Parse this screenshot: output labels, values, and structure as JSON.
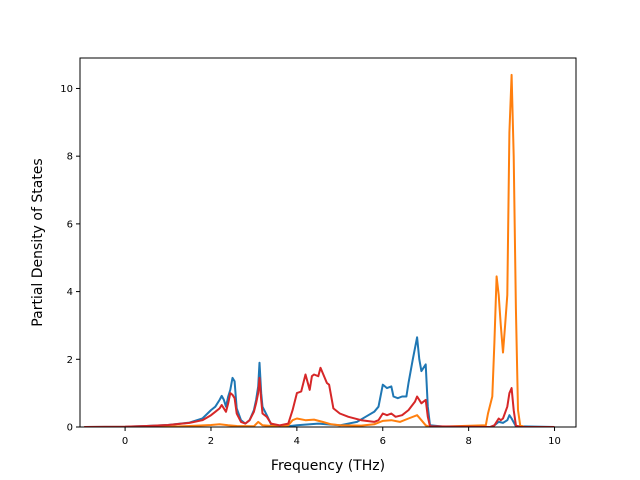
{
  "chart_data": {
    "type": "line",
    "title": "",
    "xlabel": "Frequency (THz)",
    "ylabel": "Partial Density of States",
    "xlim": [
      -1.05,
      10.5
    ],
    "ylim": [
      0,
      10.9
    ],
    "xticks": [
      0,
      2,
      4,
      6,
      8,
      10
    ],
    "yticks": [
      0,
      2,
      4,
      6,
      8,
      10
    ],
    "grid": false,
    "legend": "none",
    "series": [
      {
        "color": "#1f77b4",
        "points": [
          [
            -0.95,
            0
          ],
          [
            0.0,
            0.01
          ],
          [
            0.5,
            0.03
          ],
          [
            1.0,
            0.06
          ],
          [
            1.5,
            0.13
          ],
          [
            1.8,
            0.25
          ],
          [
            2.0,
            0.5
          ],
          [
            2.1,
            0.6
          ],
          [
            2.2,
            0.8
          ],
          [
            2.25,
            0.92
          ],
          [
            2.3,
            0.8
          ],
          [
            2.35,
            0.6
          ],
          [
            2.4,
            0.9
          ],
          [
            2.45,
            1.1
          ],
          [
            2.5,
            1.45
          ],
          [
            2.55,
            1.35
          ],
          [
            2.6,
            0.55
          ],
          [
            2.7,
            0.2
          ],
          [
            2.8,
            0.1
          ],
          [
            2.9,
            0.2
          ],
          [
            3.0,
            0.5
          ],
          [
            3.05,
            0.8
          ],
          [
            3.1,
            1.2
          ],
          [
            3.13,
            1.9
          ],
          [
            3.17,
            1.0
          ],
          [
            3.2,
            0.6
          ],
          [
            3.3,
            0.35
          ],
          [
            3.4,
            0.08
          ],
          [
            3.6,
            0.03
          ],
          [
            3.8,
            0.02
          ],
          [
            4.0,
            0.05
          ],
          [
            4.5,
            0.1
          ],
          [
            5.0,
            0.05
          ],
          [
            5.4,
            0.15
          ],
          [
            5.6,
            0.3
          ],
          [
            5.8,
            0.45
          ],
          [
            5.9,
            0.6
          ],
          [
            6.0,
            1.25
          ],
          [
            6.05,
            1.2
          ],
          [
            6.1,
            1.15
          ],
          [
            6.2,
            1.2
          ],
          [
            6.25,
            0.9
          ],
          [
            6.35,
            0.85
          ],
          [
            6.45,
            0.9
          ],
          [
            6.55,
            0.9
          ],
          [
            6.6,
            1.3
          ],
          [
            6.7,
            2.0
          ],
          [
            6.8,
            2.65
          ],
          [
            6.85,
            2.0
          ],
          [
            6.9,
            1.65
          ],
          [
            7.0,
            1.85
          ],
          [
            7.05,
            0.6
          ],
          [
            7.1,
            0.05
          ],
          [
            7.5,
            0
          ],
          [
            8.5,
            0
          ],
          [
            8.6,
            0.05
          ],
          [
            8.7,
            0.15
          ],
          [
            8.8,
            0.12
          ],
          [
            8.9,
            0.2
          ],
          [
            8.95,
            0.35
          ],
          [
            9.0,
            0.25
          ],
          [
            9.1,
            0.02
          ],
          [
            10.0,
            0
          ]
        ]
      },
      {
        "color": "#ff7f0e",
        "points": [
          [
            -0.95,
            0
          ],
          [
            1.0,
            0.01
          ],
          [
            1.5,
            0.03
          ],
          [
            2.0,
            0.06
          ],
          [
            2.2,
            0.08
          ],
          [
            2.4,
            0.05
          ],
          [
            2.6,
            0.03
          ],
          [
            3.0,
            0.02
          ],
          [
            3.1,
            0.15
          ],
          [
            3.2,
            0.05
          ],
          [
            3.5,
            0.02
          ],
          [
            3.8,
            0.05
          ],
          [
            3.9,
            0.2
          ],
          [
            4.0,
            0.25
          ],
          [
            4.2,
            0.2
          ],
          [
            4.4,
            0.22
          ],
          [
            4.6,
            0.15
          ],
          [
            4.8,
            0.08
          ],
          [
            5.0,
            0.05
          ],
          [
            5.5,
            0.04
          ],
          [
            5.8,
            0.08
          ],
          [
            6.0,
            0.18
          ],
          [
            6.2,
            0.2
          ],
          [
            6.4,
            0.15
          ],
          [
            6.6,
            0.25
          ],
          [
            6.8,
            0.35
          ],
          [
            6.9,
            0.2
          ],
          [
            7.0,
            0.05
          ],
          [
            7.1,
            0
          ],
          [
            8.4,
            0.05
          ],
          [
            8.45,
            0.4
          ],
          [
            8.55,
            0.9
          ],
          [
            8.6,
            2.5
          ],
          [
            8.65,
            4.45
          ],
          [
            8.7,
            3.9
          ],
          [
            8.75,
            3.0
          ],
          [
            8.8,
            2.2
          ],
          [
            8.85,
            3.0
          ],
          [
            8.9,
            3.9
          ],
          [
            8.95,
            8.7
          ],
          [
            9.0,
            10.4
          ],
          [
            9.05,
            8.0
          ],
          [
            9.1,
            3.5
          ],
          [
            9.15,
            0.5
          ],
          [
            9.2,
            0.05
          ],
          [
            9.3,
            0
          ],
          [
            10.0,
            0
          ]
        ]
      },
      {
        "color": "#d62728",
        "points": [
          [
            -0.95,
            0
          ],
          [
            0.0,
            0.01
          ],
          [
            0.5,
            0.03
          ],
          [
            1.0,
            0.06
          ],
          [
            1.5,
            0.12
          ],
          [
            1.8,
            0.2
          ],
          [
            2.0,
            0.35
          ],
          [
            2.1,
            0.45
          ],
          [
            2.2,
            0.55
          ],
          [
            2.25,
            0.65
          ],
          [
            2.35,
            0.45
          ],
          [
            2.4,
            0.7
          ],
          [
            2.45,
            1.0
          ],
          [
            2.5,
            0.95
          ],
          [
            2.55,
            0.85
          ],
          [
            2.6,
            0.4
          ],
          [
            2.7,
            0.15
          ],
          [
            2.8,
            0.1
          ],
          [
            2.9,
            0.2
          ],
          [
            3.0,
            0.45
          ],
          [
            3.05,
            0.7
          ],
          [
            3.1,
            1.0
          ],
          [
            3.13,
            1.45
          ],
          [
            3.17,
            0.8
          ],
          [
            3.2,
            0.4
          ],
          [
            3.3,
            0.3
          ],
          [
            3.4,
            0.1
          ],
          [
            3.6,
            0.05
          ],
          [
            3.8,
            0.1
          ],
          [
            3.9,
            0.5
          ],
          [
            4.0,
            1.0
          ],
          [
            4.1,
            1.05
          ],
          [
            4.2,
            1.55
          ],
          [
            4.3,
            1.1
          ],
          [
            4.35,
            1.5
          ],
          [
            4.4,
            1.55
          ],
          [
            4.5,
            1.5
          ],
          [
            4.55,
            1.75
          ],
          [
            4.6,
            1.6
          ],
          [
            4.7,
            1.3
          ],
          [
            4.75,
            1.25
          ],
          [
            4.85,
            0.55
          ],
          [
            5.0,
            0.4
          ],
          [
            5.2,
            0.3
          ],
          [
            5.5,
            0.2
          ],
          [
            5.8,
            0.15
          ],
          [
            5.9,
            0.2
          ],
          [
            6.0,
            0.4
          ],
          [
            6.1,
            0.35
          ],
          [
            6.2,
            0.4
          ],
          [
            6.3,
            0.3
          ],
          [
            6.45,
            0.35
          ],
          [
            6.6,
            0.5
          ],
          [
            6.75,
            0.75
          ],
          [
            6.8,
            0.9
          ],
          [
            6.9,
            0.7
          ],
          [
            7.0,
            0.8
          ],
          [
            7.05,
            0.3
          ],
          [
            7.1,
            0.02
          ],
          [
            8.5,
            0
          ],
          [
            8.6,
            0.05
          ],
          [
            8.7,
            0.25
          ],
          [
            8.75,
            0.2
          ],
          [
            8.8,
            0.25
          ],
          [
            8.9,
            0.6
          ],
          [
            8.95,
            1.0
          ],
          [
            9.0,
            1.15
          ],
          [
            9.05,
            0.5
          ],
          [
            9.1,
            0.05
          ],
          [
            9.2,
            0
          ],
          [
            10.0,
            0
          ]
        ]
      }
    ]
  }
}
